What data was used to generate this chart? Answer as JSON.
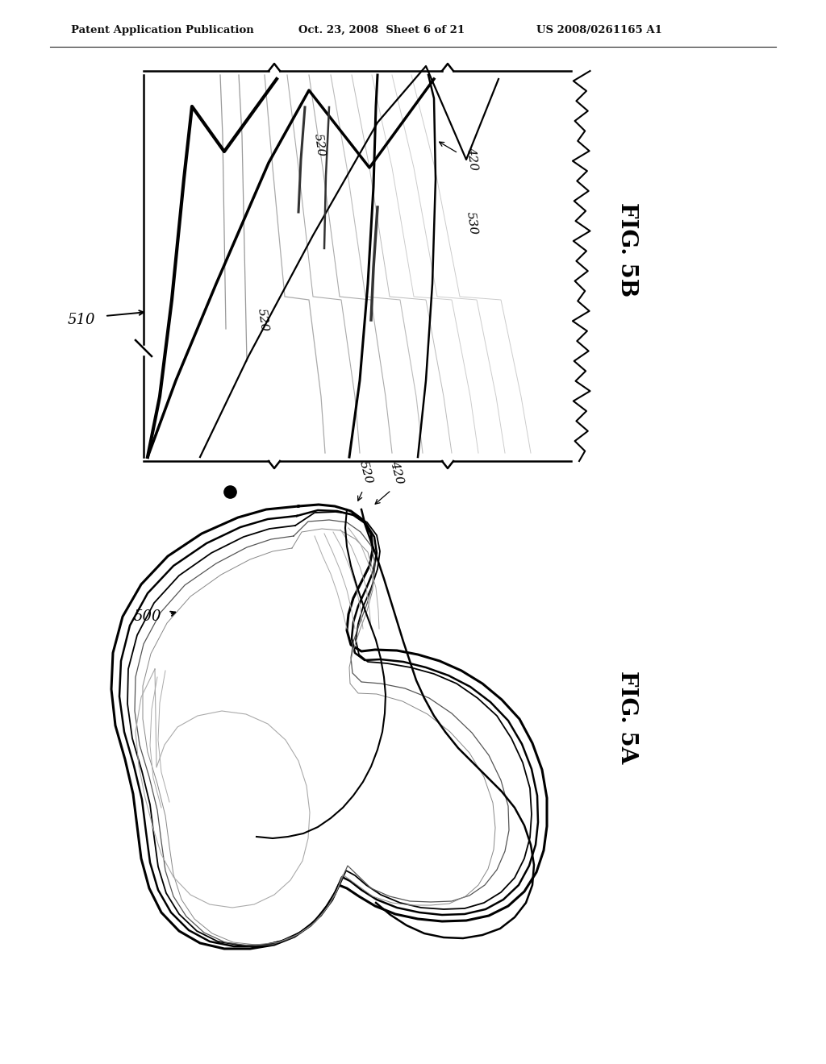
{
  "header_left": "Patent Application Publication",
  "header_mid": "Oct. 23, 2008  Sheet 6 of 21",
  "header_right": "US 2008/0261165 A1",
  "fig5b_label": "FIG. 5B",
  "fig5a_label": "FIG. 5A",
  "label_510": "510",
  "label_500": "500",
  "label_520": "520",
  "label_420": "420",
  "label_530": "530",
  "bg_color": "#ffffff"
}
